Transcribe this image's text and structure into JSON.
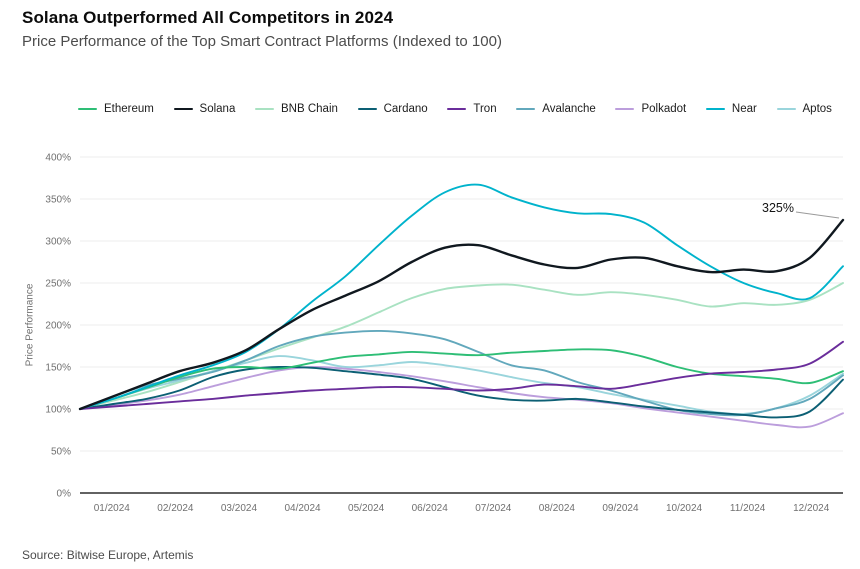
{
  "source": "Source: Bitwise Europe, Artemis",
  "chart_data": {
    "type": "line",
    "title": "Solana Outperformed All Competitors in 2024",
    "subtitle": "Price Performance of the Top Smart Contract Platforms (Indexed to 100)",
    "ylabel": "Price Performance",
    "ylim": [
      0,
      400
    ],
    "yticks": [
      0,
      50,
      100,
      150,
      200,
      250,
      300,
      350,
      400
    ],
    "ytick_suffix": "%",
    "grid": "horizontal",
    "legend_position": "top",
    "x_labels": [
      "01/2024",
      "02/2024",
      "03/2024",
      "04/2024",
      "05/2024",
      "06/2024",
      "07/2024",
      "08/2024",
      "09/2024",
      "10/2024",
      "11/2024",
      "12/2024"
    ],
    "annotation": {
      "text": "325%",
      "series": "Solana",
      "value": 325
    },
    "draw_order": [
      "BNB Chain",
      "Aptos",
      "Polkadot",
      "Avalanche",
      "Cardano",
      "Ethereum",
      "Tron",
      "Near",
      "Solana"
    ],
    "series": [
      {
        "name": "Ethereum",
        "color": "#2ebe76",
        "values": [
          100,
          112,
          125,
          138,
          148,
          150,
          148,
          155,
          162,
          165,
          168,
          166,
          164,
          167,
          169,
          171,
          170,
          162,
          150,
          142,
          139,
          136,
          131,
          145
        ]
      },
      {
        "name": "Solana",
        "color": "#10181f",
        "values": [
          100,
          115,
          130,
          145,
          155,
          170,
          195,
          218,
          235,
          252,
          275,
          292,
          295,
          283,
          272,
          268,
          278,
          280,
          270,
          263,
          266,
          264,
          280,
          325
        ]
      },
      {
        "name": "BNB Chain",
        "color": "#a9e2c2",
        "values": [
          100,
          110,
          120,
          132,
          145,
          158,
          172,
          185,
          198,
          215,
          232,
          243,
          247,
          248,
          242,
          236,
          239,
          236,
          230,
          222,
          226,
          224,
          230,
          250
        ]
      },
      {
        "name": "Cardano",
        "color": "#0c5f74",
        "values": [
          100,
          106,
          112,
          122,
          138,
          147,
          150,
          149,
          145,
          141,
          136,
          126,
          116,
          111,
          110,
          112,
          108,
          103,
          99,
          96,
          93,
          90,
          97,
          135
        ]
      },
      {
        "name": "Tron",
        "color": "#6a2d9b",
        "values": [
          100,
          103,
          106,
          109,
          112,
          116,
          119,
          122,
          124,
          126,
          126,
          124,
          122,
          124,
          129,
          127,
          124,
          130,
          137,
          142,
          144,
          147,
          154,
          180
        ]
      },
      {
        "name": "Avalanche",
        "color": "#62a8bc",
        "values": [
          100,
          115,
          128,
          136,
          144,
          158,
          175,
          186,
          191,
          193,
          190,
          183,
          168,
          152,
          146,
          132,
          122,
          110,
          99,
          94,
          93,
          101,
          112,
          140
        ]
      },
      {
        "name": "Polkadot",
        "color": "#bc9edc",
        "values": [
          100,
          105,
          110,
          117,
          127,
          137,
          146,
          150,
          148,
          144,
          139,
          133,
          126,
          119,
          114,
          111,
          107,
          101,
          96,
          91,
          86,
          81,
          79,
          95
        ]
      },
      {
        "name": "Near",
        "color": "#00b3cc",
        "values": [
          100,
          112,
          126,
          140,
          152,
          168,
          195,
          228,
          258,
          295,
          330,
          358,
          367,
          352,
          340,
          333,
          332,
          322,
          295,
          270,
          250,
          238,
          232,
          270
        ]
      },
      {
        "name": "Aptos",
        "color": "#9ad5dc",
        "values": [
          100,
          112,
          124,
          134,
          145,
          155,
          163,
          158,
          150,
          152,
          156,
          152,
          146,
          138,
          131,
          126,
          118,
          111,
          104,
          97,
          94,
          101,
          116,
          142
        ]
      }
    ]
  }
}
